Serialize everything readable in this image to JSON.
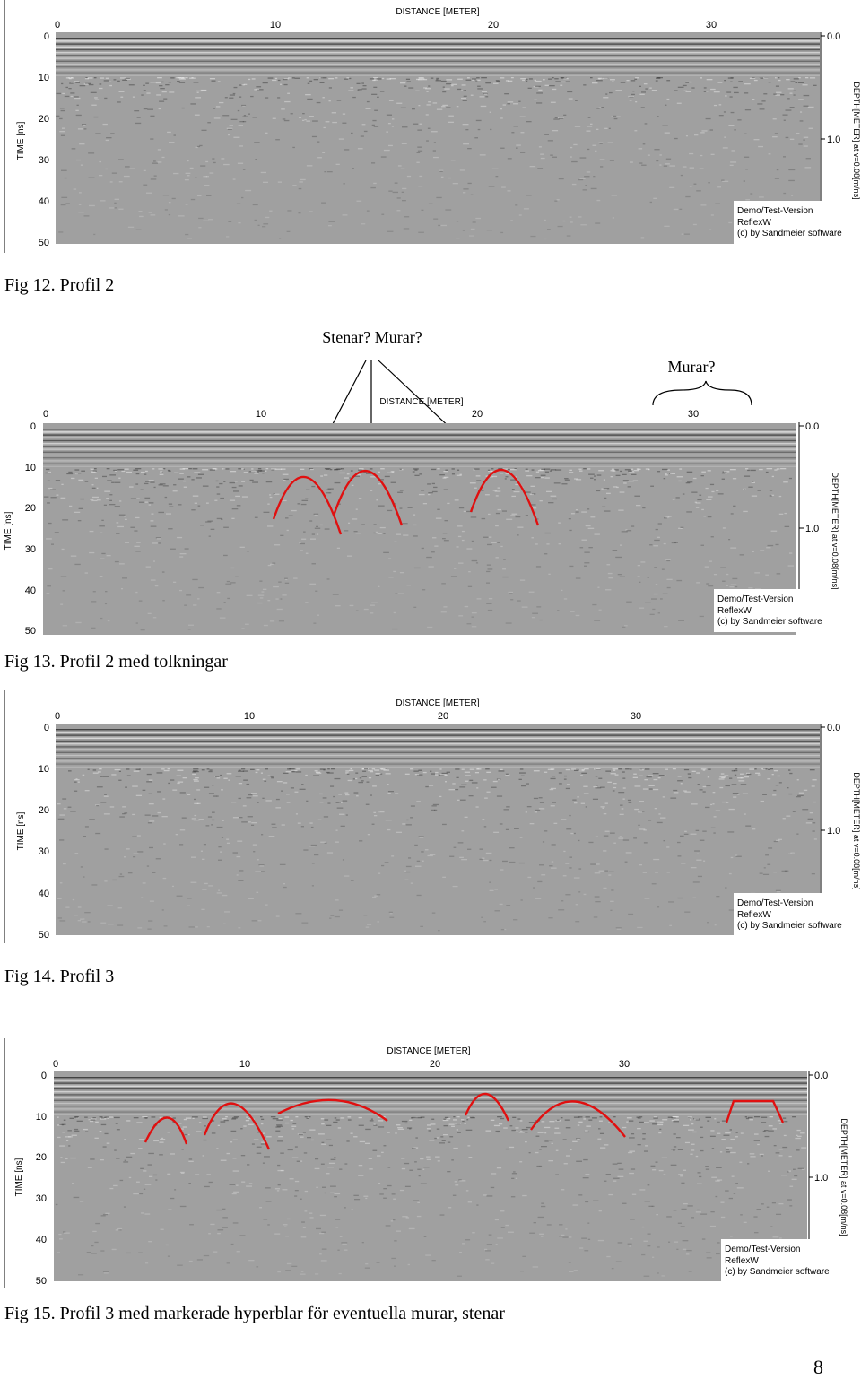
{
  "axes": {
    "distance_title": "DISTANCE [METER]",
    "time_title": "TIME [ns]",
    "depth_title": "DEPTH[METER] at v=0.08[m/ns]",
    "x_ticks": [
      "0",
      "10",
      "20",
      "30"
    ],
    "y_ticks": [
      "0",
      "10",
      "20",
      "30",
      "40",
      "50"
    ],
    "depth_ticks": [
      "0.0",
      "1.0"
    ]
  },
  "watermark": {
    "line1": "Demo/Test-Version",
    "line2": "ReflexW",
    "line3": "(c) by Sandmeier software"
  },
  "figures": [
    {
      "id": "fig12",
      "caption": "Fig 12. Profil 2"
    },
    {
      "id": "fig13",
      "caption": "Fig 13. Profil 2 med tolkningar",
      "annotations": {
        "stones": "Stenar? Murar?",
        "walls": "Murar?"
      }
    },
    {
      "id": "fig14",
      "caption": "Fig 14. Profil 3"
    },
    {
      "id": "fig15",
      "caption": "Fig 15. Profil 3 med markerade hyperblar för eventuella murar, stenar"
    }
  ],
  "page_number": "8",
  "colors": {
    "annotation": "#e01010",
    "radargram_gray": "#a0a0a0"
  }
}
